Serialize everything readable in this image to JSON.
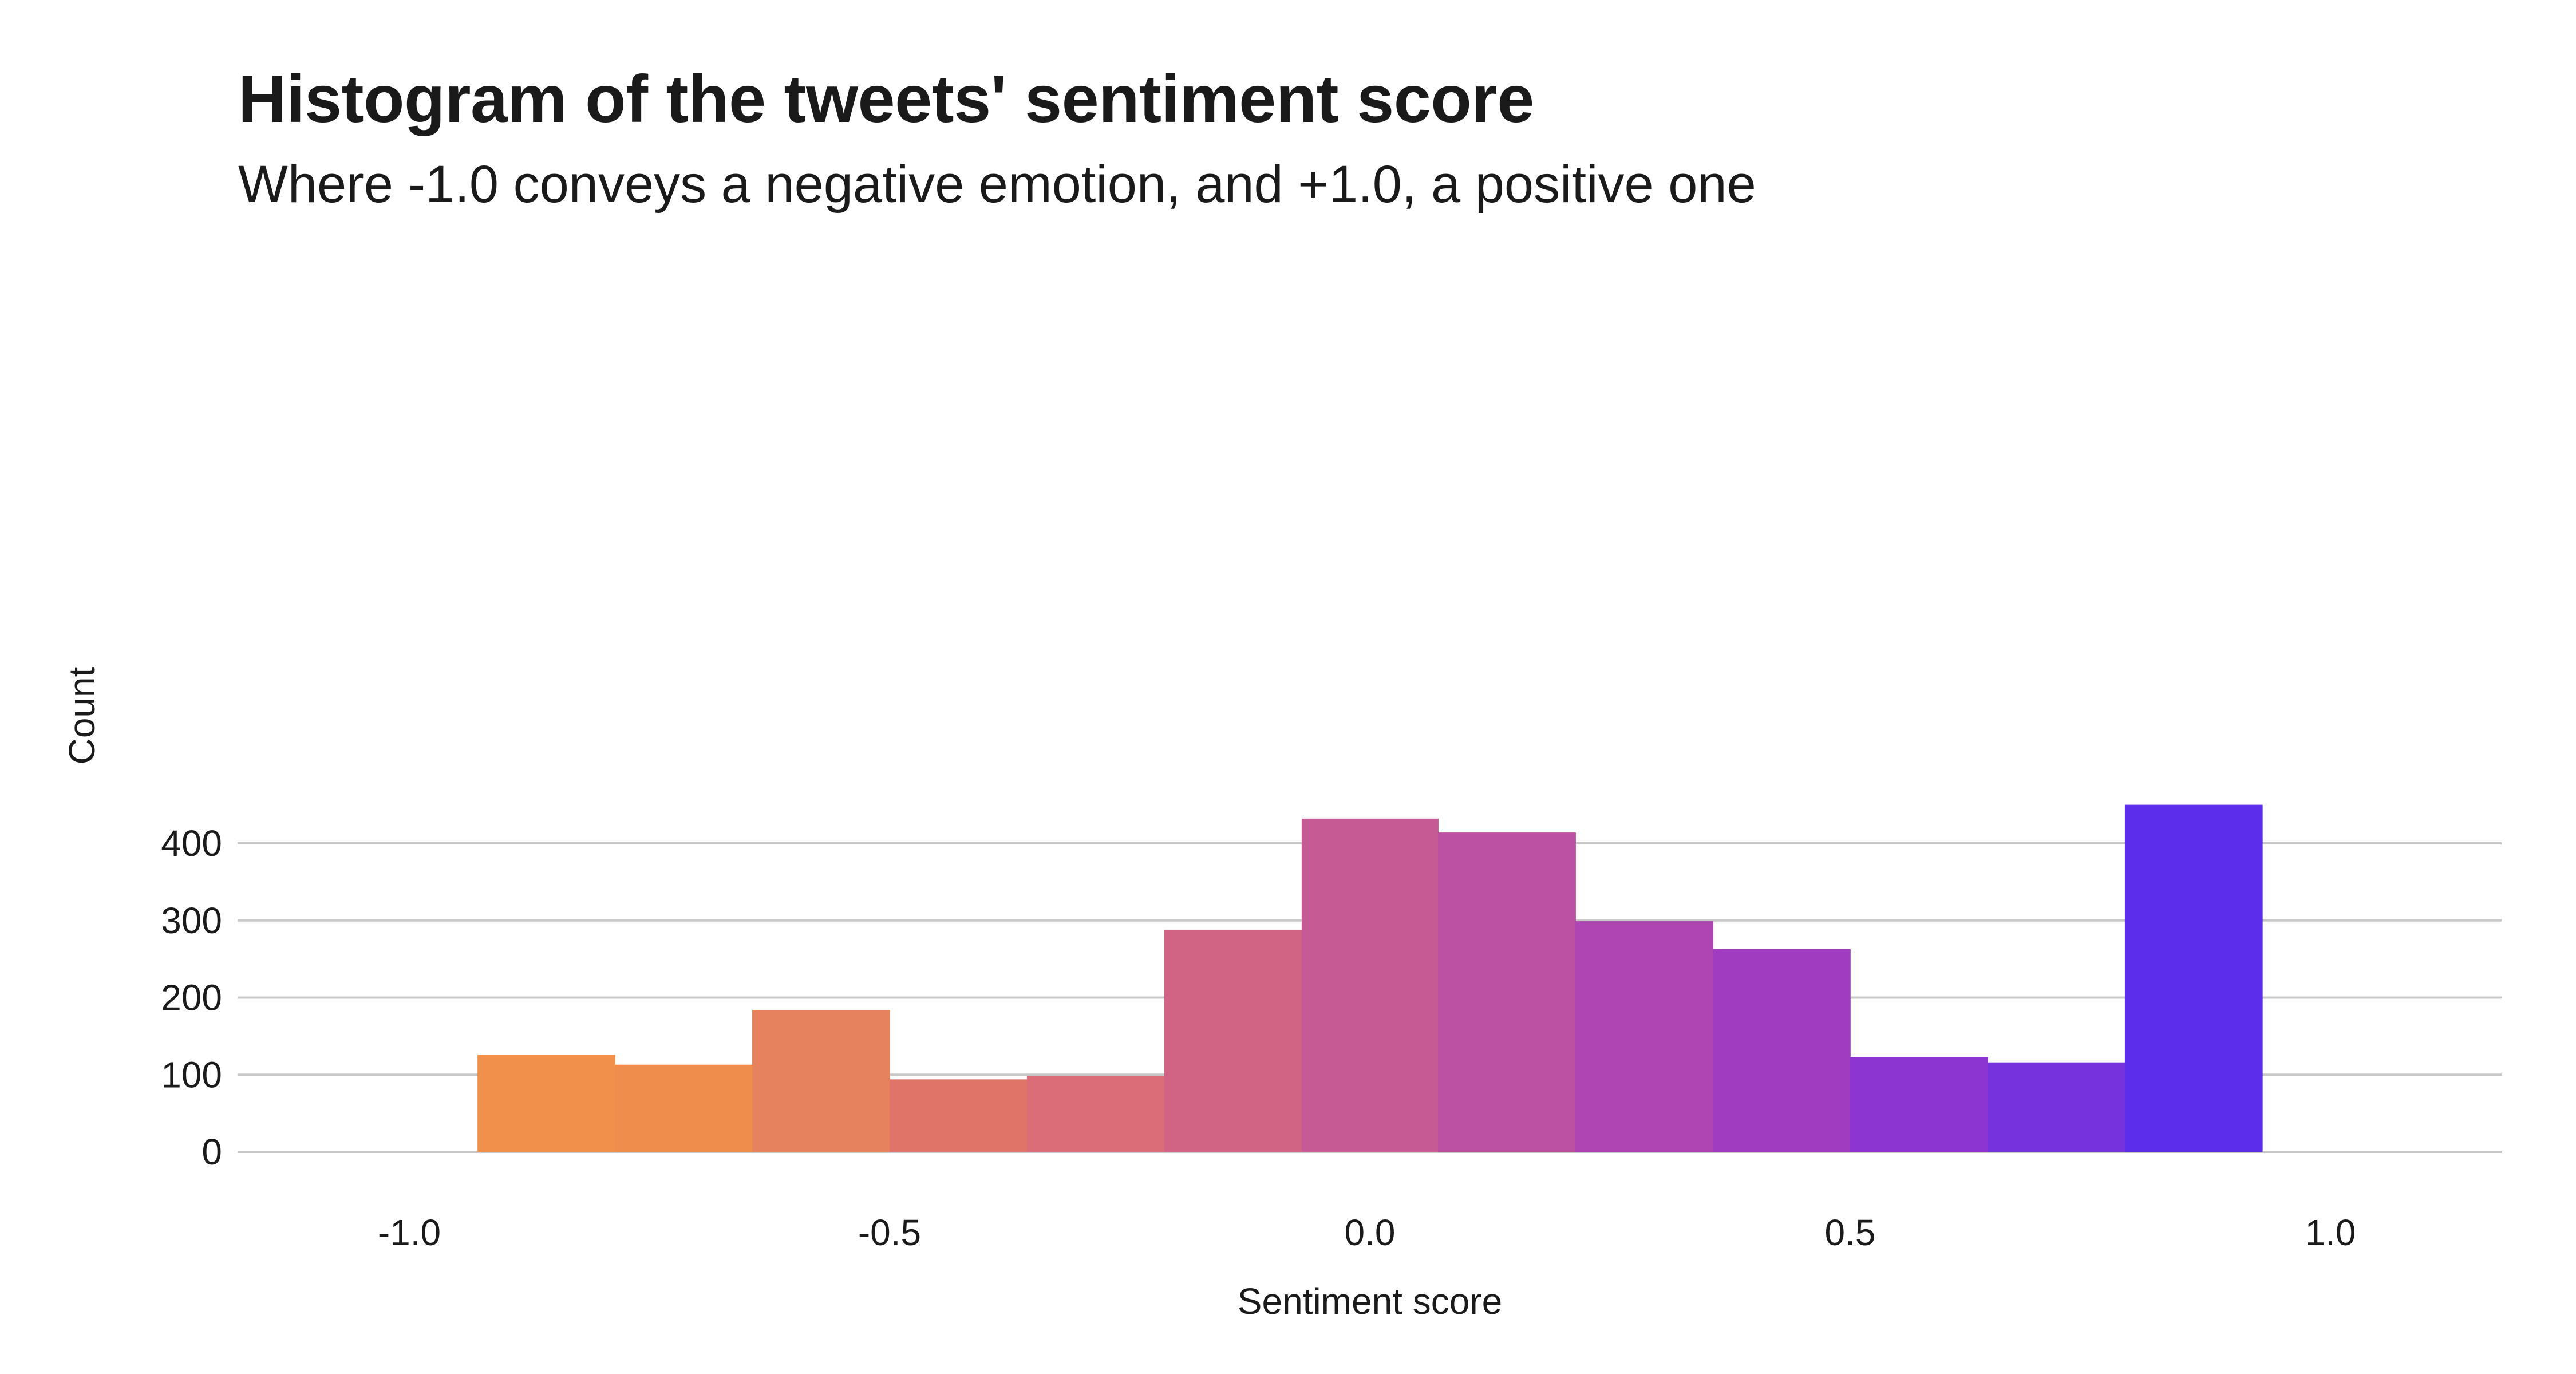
{
  "chart_data": {
    "type": "bar",
    "title": "Histogram of the tweets' sentiment score",
    "subtitle": "Where -1.0 conveys a negative emotion, and +1.0, a positive one",
    "xlabel": "Sentiment score",
    "ylabel": "Count",
    "xlim": [
      -1.2,
      1.2
    ],
    "ylim": [
      0,
      450
    ],
    "x_ticks": [
      -1.0,
      -0.5,
      0.0,
      0.5,
      1.0
    ],
    "x_tick_labels": [
      "-1.0",
      "-0.5",
      "0.0",
      "0.5",
      "1.0"
    ],
    "y_ticks": [
      0,
      100,
      200,
      300,
      400
    ],
    "y_tick_labels": [
      "0",
      "100",
      "200",
      "300",
      "400"
    ],
    "grid": "horizontal",
    "legend": "none",
    "bins": [
      {
        "x0": -0.929,
        "x1": -0.786,
        "count": 126,
        "color": "#f0904a"
      },
      {
        "x0": -0.786,
        "x1": -0.643,
        "count": 113,
        "color": "#ef8d4c"
      },
      {
        "x0": -0.643,
        "x1": -0.5,
        "count": 184,
        "color": "#e6825d"
      },
      {
        "x0": -0.5,
        "x1": -0.357,
        "count": 94,
        "color": "#e07469"
      },
      {
        "x0": -0.357,
        "x1": -0.214,
        "count": 98,
        "color": "#da6d78"
      },
      {
        "x0": -0.214,
        "x1": -0.071,
        "count": 288,
        "color": "#d16485"
      },
      {
        "x0": -0.071,
        "x1": 0.071,
        "count": 432,
        "color": "#c65a94"
      },
      {
        "x0": 0.071,
        "x1": 0.214,
        "count": 414,
        "color": "#bc50a3"
      },
      {
        "x0": 0.214,
        "x1": 0.357,
        "count": 299,
        "color": "#ae45b2"
      },
      {
        "x0": 0.357,
        "x1": 0.5,
        "count": 263,
        "color": "#a03cc0"
      },
      {
        "x0": 0.5,
        "x1": 0.643,
        "count": 123,
        "color": "#8c35d0"
      },
      {
        "x0": 0.643,
        "x1": 0.786,
        "count": 116,
        "color": "#7632dc"
      },
      {
        "x0": 0.786,
        "x1": 0.929,
        "count": 450,
        "color": "#5c2eeb"
      }
    ]
  }
}
